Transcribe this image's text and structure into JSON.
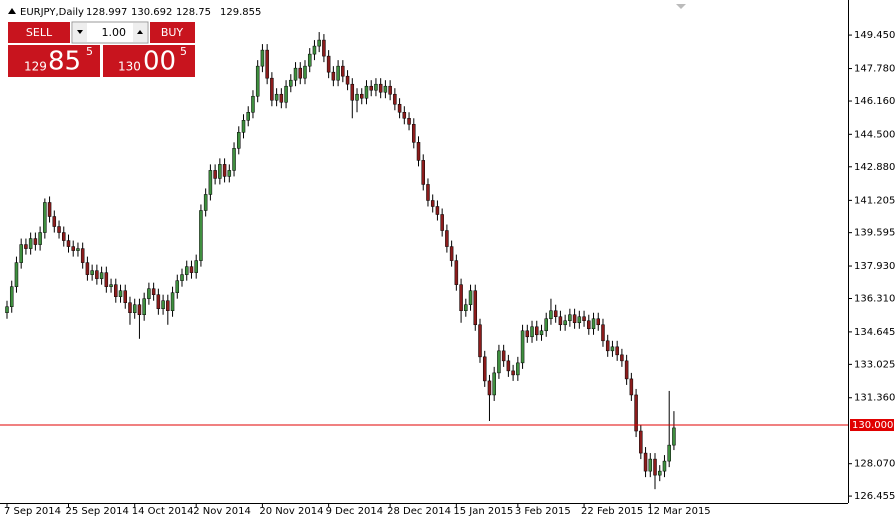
{
  "chart_data": {
    "type": "candlestick",
    "symbol": "EURJPY,Daily",
    "up_color": "#3f8f3f",
    "down_color": "#8b1c1c",
    "categories": [
      "7 Sep 2014",
      null,
      null,
      null,
      null,
      null,
      null,
      null,
      null,
      null,
      null,
      null,
      null,
      "25 Sep 2014",
      null,
      null,
      null,
      null,
      null,
      null,
      null,
      null,
      null,
      null,
      null,
      null,
      null,
      "14 Oct 2014",
      null,
      null,
      null,
      null,
      null,
      null,
      null,
      null,
      null,
      null,
      null,
      null,
      "2 Nov 2014",
      null,
      null,
      null,
      null,
      null,
      null,
      null,
      null,
      null,
      null,
      null,
      null,
      null,
      "20 Nov 2014",
      null,
      null,
      null,
      null,
      null,
      null,
      null,
      null,
      null,
      null,
      null,
      null,
      null,
      "9 Dec 2014",
      null,
      null,
      null,
      null,
      null,
      null,
      null,
      null,
      null,
      null,
      null,
      null,
      "28 Dec 2014",
      null,
      null,
      null,
      null,
      null,
      null,
      null,
      null,
      null,
      null,
      null,
      null,
      null,
      "15 Jan 2015",
      null,
      null,
      null,
      null,
      null,
      null,
      null,
      null,
      null,
      null,
      null,
      null,
      "3 Feb 2015",
      null,
      null,
      null,
      null,
      null,
      null,
      null,
      null,
      null,
      null,
      null,
      null,
      null,
      "22 Feb 2015",
      null,
      null,
      null,
      null,
      null,
      null,
      null,
      null,
      null,
      null,
      null,
      null,
      null,
      "12 Mar 2015",
      null,
      null,
      null,
      null,
      null
    ],
    "open": [
      135.6,
      135.9,
      136.9,
      138.1,
      139.0,
      138.8,
      139.3,
      139.0,
      139.6,
      141.1,
      140.4,
      139.9,
      139.6,
      139.2,
      138.9,
      138.7,
      138.8,
      138.1,
      137.5,
      137.7,
      137.3,
      137.6,
      136.9,
      137.0,
      136.4,
      136.7,
      136.1,
      135.6,
      136.0,
      135.5,
      136.3,
      136.8,
      136.5,
      135.8,
      136.2,
      135.7,
      136.6,
      137.2,
      137.5,
      137.9,
      137.6,
      138.2,
      140.7,
      141.5,
      142.7,
      142.3,
      143.0,
      142.4,
      142.7,
      143.8,
      144.6,
      145.2,
      145.6,
      146.4,
      147.9,
      148.7,
      147.3,
      146.2,
      146.5,
      146.1,
      146.9,
      147.2,
      147.8,
      147.3,
      147.9,
      148.5,
      148.9,
      149.2,
      148.4,
      147.6,
      147.2,
      147.9,
      147.4,
      147.0,
      146.2,
      146.5,
      146.3,
      146.9,
      146.7,
      147.0,
      146.6,
      146.9,
      146.5,
      146.0,
      145.6,
      145.3,
      145.0,
      144.1,
      143.2,
      142.0,
      141.2,
      140.9,
      140.5,
      139.7,
      138.9,
      138.2,
      137.0,
      135.7,
      136.0,
      136.7,
      135.0,
      133.4,
      132.2,
      131.5,
      132.6,
      133.7,
      133.2,
      132.7,
      132.5,
      133.1,
      134.7,
      134.4,
      134.9,
      134.5,
      134.7,
      135.3,
      135.7,
      135.4,
      135.0,
      135.2,
      135.5,
      135.1,
      135.4,
      135.2,
      134.8,
      135.3,
      135.0,
      134.2,
      133.7,
      133.9,
      133.5,
      133.2,
      132.3,
      131.5,
      129.7,
      128.6,
      127.7,
      128.3,
      127.5,
      127.7,
      128.2,
      128.997
    ],
    "high": [
      136.2,
      137.2,
      138.4,
      139.3,
      139.3,
      139.6,
      139.6,
      139.9,
      141.3,
      141.4,
      140.7,
      140.2,
      139.9,
      139.5,
      139.2,
      139.1,
      139.1,
      138.4,
      138.0,
      138.0,
      137.9,
      137.9,
      137.3,
      137.3,
      137.0,
      137.0,
      136.4,
      136.3,
      136.3,
      136.6,
      137.1,
      137.1,
      136.8,
      136.5,
      136.5,
      136.9,
      137.5,
      137.8,
      138.2,
      138.2,
      138.5,
      141.0,
      141.8,
      143.0,
      143.0,
      143.3,
      143.3,
      143.0,
      144.1,
      144.9,
      145.5,
      145.9,
      146.7,
      148.2,
      149.0,
      149.0,
      147.6,
      146.8,
      146.8,
      147.2,
      147.5,
      148.1,
      148.1,
      148.2,
      148.8,
      149.2,
      149.6,
      149.5,
      148.7,
      147.9,
      148.2,
      148.2,
      147.7,
      147.3,
      146.8,
      146.8,
      147.2,
      147.2,
      147.3,
      147.3,
      147.2,
      147.2,
      146.8,
      146.3,
      145.9,
      145.6,
      145.3,
      144.4,
      143.5,
      142.3,
      141.5,
      141.2,
      140.8,
      140.0,
      139.2,
      138.5,
      137.3,
      136.3,
      137.0,
      137.0,
      135.3,
      133.7,
      132.5,
      132.9,
      134.0,
      134.0,
      133.5,
      133.0,
      133.4,
      135.0,
      135.0,
      135.2,
      135.2,
      135.0,
      135.6,
      136.3,
      136.0,
      135.7,
      135.5,
      135.8,
      135.8,
      135.7,
      135.7,
      135.5,
      135.6,
      135.6,
      135.3,
      134.5,
      134.2,
      134.2,
      133.8,
      133.5,
      132.6,
      131.8,
      130.0,
      128.9,
      128.6,
      128.6,
      128.0,
      128.5,
      131.7,
      130.692
    ],
    "low": [
      135.3,
      135.6,
      136.6,
      137.8,
      138.5,
      138.5,
      138.7,
      138.7,
      139.3,
      140.1,
      139.6,
      139.3,
      138.9,
      138.6,
      138.4,
      138.4,
      137.8,
      137.2,
      137.2,
      137.0,
      137.0,
      136.6,
      136.6,
      136.1,
      136.1,
      135.8,
      135.0,
      135.3,
      134.3,
      135.2,
      136.0,
      136.2,
      135.5,
      135.5,
      135.0,
      135.4,
      136.3,
      136.9,
      137.2,
      137.3,
      137.3,
      137.9,
      140.4,
      141.2,
      142.0,
      142.0,
      142.1,
      142.1,
      142.4,
      143.5,
      144.3,
      144.9,
      145.3,
      146.1,
      147.6,
      147.0,
      145.9,
      145.9,
      145.8,
      145.8,
      146.6,
      146.9,
      147.0,
      147.0,
      147.6,
      148.2,
      148.6,
      148.1,
      147.3,
      146.9,
      146.9,
      147.1,
      146.7,
      145.3,
      145.6,
      146.0,
      146.0,
      146.4,
      146.4,
      146.3,
      146.3,
      146.2,
      145.7,
      145.3,
      145.0,
      144.7,
      143.8,
      142.9,
      141.7,
      140.9,
      140.6,
      140.2,
      139.4,
      138.6,
      137.9,
      136.7,
      135.1,
      135.4,
      135.7,
      134.7,
      133.1,
      131.9,
      130.2,
      131.2,
      132.3,
      132.9,
      132.4,
      132.2,
      132.2,
      132.8,
      134.1,
      134.1,
      134.2,
      134.2,
      134.4,
      135.0,
      135.1,
      134.7,
      134.7,
      134.9,
      134.8,
      134.8,
      134.9,
      134.5,
      134.5,
      134.7,
      133.9,
      133.4,
      133.4,
      133.2,
      132.9,
      132.0,
      131.2,
      129.4,
      128.3,
      127.4,
      127.4,
      126.8,
      127.2,
      127.4,
      127.9,
      128.75
    ],
    "close": [
      135.9,
      136.9,
      138.1,
      139.0,
      138.8,
      139.3,
      139.0,
      139.6,
      141.1,
      140.4,
      139.9,
      139.6,
      139.2,
      138.9,
      138.7,
      138.8,
      138.1,
      137.5,
      137.7,
      137.3,
      137.6,
      136.9,
      137.0,
      136.4,
      136.7,
      136.1,
      135.6,
      136.0,
      135.5,
      136.3,
      136.8,
      136.5,
      135.8,
      136.2,
      135.7,
      136.6,
      137.2,
      137.5,
      137.9,
      137.6,
      138.2,
      140.7,
      141.5,
      142.7,
      142.3,
      143.0,
      142.4,
      142.7,
      143.8,
      144.6,
      145.2,
      145.6,
      146.4,
      147.9,
      148.7,
      147.3,
      146.2,
      146.5,
      146.1,
      146.9,
      147.2,
      147.8,
      147.3,
      147.9,
      148.5,
      148.9,
      149.2,
      148.4,
      147.6,
      147.2,
      147.9,
      147.4,
      147.0,
      146.2,
      146.5,
      146.3,
      146.9,
      146.7,
      147.0,
      146.6,
      146.9,
      146.5,
      146.0,
      145.6,
      145.3,
      145.0,
      144.1,
      143.2,
      142.0,
      141.2,
      140.9,
      140.5,
      139.7,
      138.9,
      138.2,
      137.0,
      135.7,
      136.0,
      136.7,
      135.0,
      133.4,
      132.2,
      131.5,
      132.6,
      133.7,
      133.2,
      132.7,
      132.5,
      133.1,
      134.7,
      134.4,
      134.9,
      134.5,
      134.7,
      135.3,
      135.7,
      135.4,
      135.0,
      135.2,
      135.5,
      135.1,
      135.4,
      135.2,
      134.8,
      135.3,
      135.0,
      134.2,
      133.7,
      133.9,
      133.5,
      133.2,
      132.3,
      131.5,
      129.7,
      128.6,
      127.7,
      128.3,
      127.5,
      127.7,
      128.2,
      128.997,
      129.855
    ],
    "ylim": [
      126.11,
      150.95
    ],
    "yticks": [
      {
        "value": 149.45,
        "label": "149.450"
      },
      {
        "value": 147.78,
        "label": "147.780"
      },
      {
        "value": 146.16,
        "label": "146.160"
      },
      {
        "value": 144.5,
        "label": "144.500"
      },
      {
        "value": 142.88,
        "label": "142.880"
      },
      {
        "value": 141.205,
        "label": "141.205"
      },
      {
        "value": 139.595,
        "label": "139.595"
      },
      {
        "value": 137.93,
        "label": "137.930"
      },
      {
        "value": 136.31,
        "label": "136.310"
      },
      {
        "value": 134.645,
        "label": "134.645"
      },
      {
        "value": 133.025,
        "label": "133.025"
      },
      {
        "value": 131.36,
        "label": "131.360"
      },
      {
        "value": 128.07,
        "label": "128.070"
      },
      {
        "value": 126.455,
        "label": "126.455"
      }
    ],
    "price_line": {
      "value": 130,
      "label": "130.000",
      "color": "#e00000"
    },
    "grid": false
  },
  "trade_panel": {
    "sell": "SELL",
    "buy": "BUY",
    "lot": "1.00",
    "bid": [
      "129",
      "85",
      "5"
    ],
    "ask": [
      "130",
      "00",
      "5"
    ]
  }
}
